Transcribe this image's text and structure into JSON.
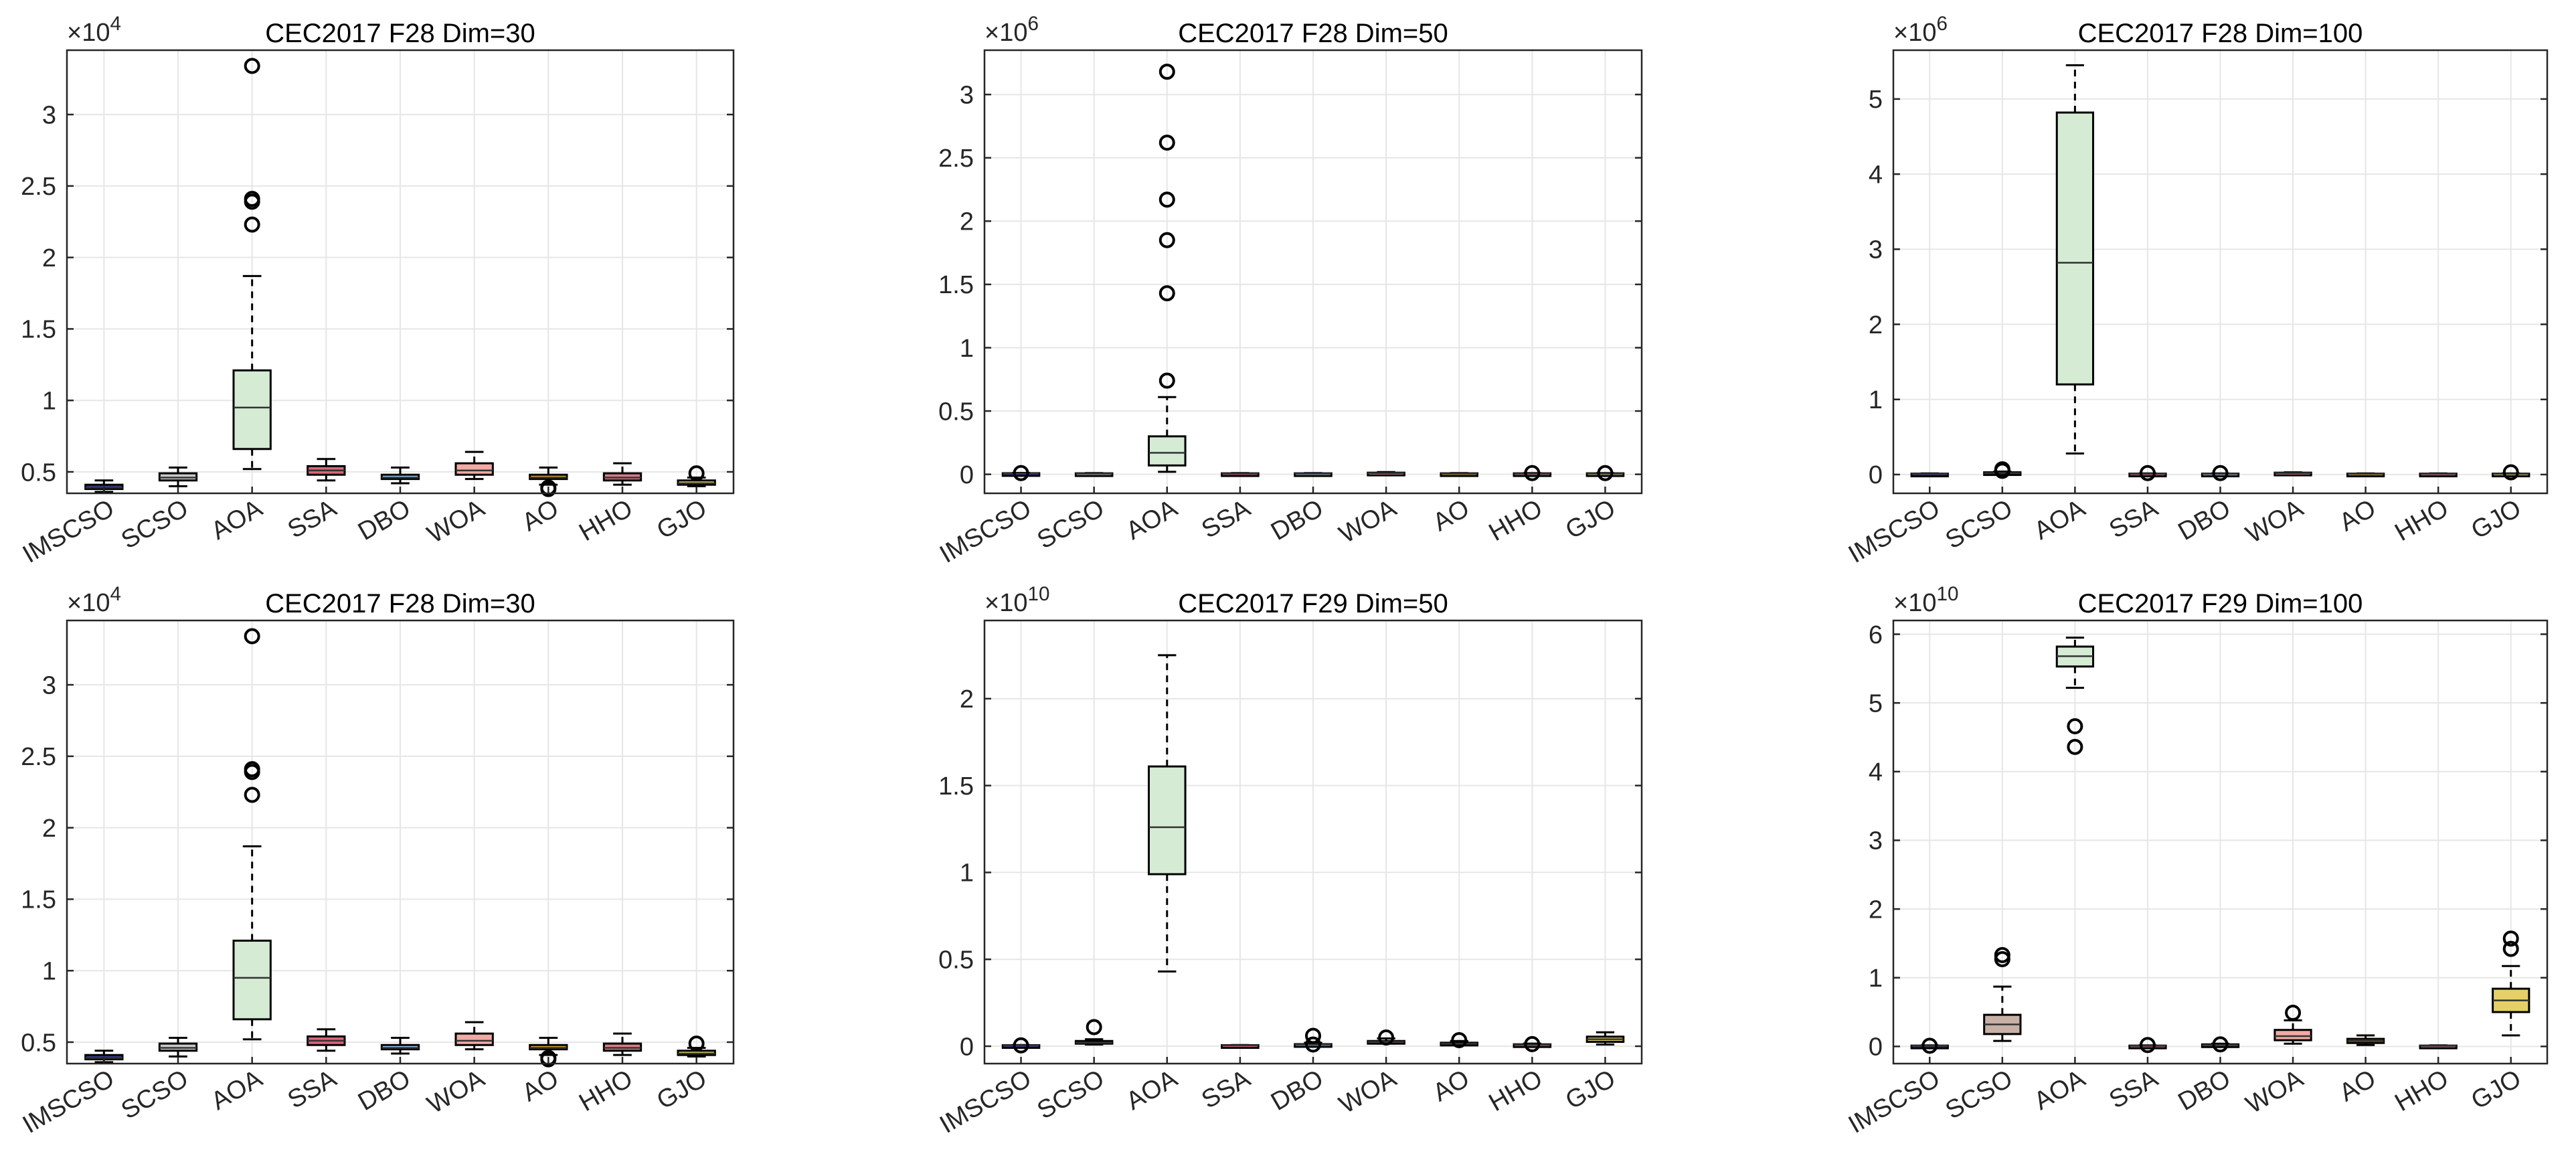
{
  "figure_title": "",
  "colors": {
    "box_fill": [
      "#2f3a8f",
      "#c9c9c9",
      "#d5ebd4",
      "#d9667a",
      "#9cc6ea",
      "#f1aaa4",
      "#d8a22f",
      "#d77c86",
      "#e4d067"
    ],
    "grid": "#e6e6e6",
    "axis": "#262626",
    "text": "#262626"
  },
  "chart_data": [
    {
      "type": "box",
      "title": "CEC2017 F28 Dim=30",
      "exponent": "4",
      "categories": [
        "IMSCSO",
        "SCSO",
        "AOA",
        "SSA",
        "DBO",
        "WOA",
        "AO",
        "HHO",
        "GJO"
      ],
      "ylim": [
        0.35,
        3.45
      ],
      "yticks": [
        0.5,
        1,
        1.5,
        2,
        2.5,
        3
      ],
      "ytick_labels": [
        "0.5",
        "1",
        "1.5",
        "2",
        "2.5",
        "3"
      ],
      "box_fill": [
        "#2f3a8f",
        "#c9c9c9",
        "#d5ebd4",
        "#d9667a",
        "#9cc6ea",
        "#f1aaa4",
        "#d8a22f",
        "#d77c86",
        "#e4d067"
      ],
      "boxes": [
        {
          "min": 0.36,
          "q1": 0.38,
          "median": 0.39,
          "q3": 0.41,
          "max": 0.44,
          "outliers": []
        },
        {
          "min": 0.4,
          "q1": 0.44,
          "median": 0.46,
          "q3": 0.49,
          "max": 0.53,
          "outliers": []
        },
        {
          "min": 0.52,
          "q1": 0.66,
          "median": 0.95,
          "q3": 1.21,
          "max": 1.87,
          "outliers": [
            3.34,
            2.41,
            2.39,
            2.23
          ]
        },
        {
          "min": 0.44,
          "q1": 0.48,
          "median": 0.51,
          "q3": 0.54,
          "max": 0.59,
          "outliers": []
        },
        {
          "min": 0.42,
          "q1": 0.45,
          "median": 0.46,
          "q3": 0.48,
          "max": 0.53,
          "outliers": []
        },
        {
          "min": 0.45,
          "q1": 0.48,
          "median": 0.51,
          "q3": 0.56,
          "max": 0.64,
          "outliers": []
        },
        {
          "min": 0.41,
          "q1": 0.45,
          "median": 0.46,
          "q3": 0.48,
          "max": 0.53,
          "outliers": [
            0.39,
            0.38
          ]
        },
        {
          "min": 0.41,
          "q1": 0.44,
          "median": 0.46,
          "q3": 0.49,
          "max": 0.56,
          "outliers": []
        },
        {
          "min": 0.4,
          "q1": 0.41,
          "median": 0.42,
          "q3": 0.44,
          "max": 0.46,
          "outliers": [
            0.49
          ]
        }
      ]
    },
    {
      "type": "box",
      "title": "CEC2017 F28 Dim=50",
      "exponent": "6",
      "categories": [
        "IMSCSO",
        "SCSO",
        "AOA",
        "SSA",
        "DBO",
        "WOA",
        "AO",
        "HHO",
        "GJO"
      ],
      "ylim": [
        -0.15,
        3.35
      ],
      "yticks": [
        0,
        0.5,
        1,
        1.5,
        2,
        2.5,
        3
      ],
      "ytick_labels": [
        "0",
        "0.5",
        "1",
        "1.5",
        "2",
        "2.5",
        "3"
      ],
      "box_fill": [
        "#2f3a8f",
        "#c9c9c9",
        "#d5ebd4",
        "#d9667a",
        "#9cc6ea",
        "#f1aaa4",
        "#d8a22f",
        "#d77c86",
        "#e4d067"
      ],
      "boxes": [
        {
          "min": 0.003,
          "q1": 0.005,
          "median": 0.007,
          "q3": 0.009,
          "max": 0.011,
          "outliers": [
            0.01
          ]
        },
        {
          "min": 0.003,
          "q1": 0.005,
          "median": 0.006,
          "q3": 0.008,
          "max": 0.01,
          "outliers": []
        },
        {
          "min": 0.02,
          "q1": 0.07,
          "median": 0.17,
          "q3": 0.3,
          "max": 0.61,
          "outliers": [
            3.18,
            2.62,
            2.17,
            1.85,
            1.43,
            0.74
          ]
        },
        {
          "min": 0.002,
          "q1": 0.004,
          "median": 0.006,
          "q3": 0.008,
          "max": 0.01,
          "outliers": []
        },
        {
          "min": 0.003,
          "q1": 0.005,
          "median": 0.006,
          "q3": 0.008,
          "max": 0.01,
          "outliers": []
        },
        {
          "min": 0.004,
          "q1": 0.008,
          "median": 0.01,
          "q3": 0.013,
          "max": 0.018,
          "outliers": []
        },
        {
          "min": 0.003,
          "q1": 0.005,
          "median": 0.006,
          "q3": 0.008,
          "max": 0.01,
          "outliers": []
        },
        {
          "min": 0.003,
          "q1": 0.005,
          "median": 0.006,
          "q3": 0.008,
          "max": 0.01,
          "outliers": [
            0.01
          ]
        },
        {
          "min": 0.003,
          "q1": 0.005,
          "median": 0.006,
          "q3": 0.008,
          "max": 0.01,
          "outliers": [
            0.01
          ]
        }
      ]
    },
    {
      "type": "box",
      "title": "CEC2017 F28 Dim=100",
      "exponent": "6",
      "categories": [
        "IMSCSO",
        "SCSO",
        "AOA",
        "SSA",
        "DBO",
        "WOA",
        "AO",
        "HHO",
        "GJO"
      ],
      "ylim": [
        -0.25,
        5.65
      ],
      "yticks": [
        0,
        1,
        2,
        3,
        4,
        5
      ],
      "ytick_labels": [
        "0",
        "1",
        "2",
        "3",
        "4",
        "5"
      ],
      "box_fill": [
        "#2f3a8f",
        "#c9c9c9",
        "#d5ebd4",
        "#d9667a",
        "#9cc6ea",
        "#f1aaa4",
        "#d8a22f",
        "#d77c86",
        "#e4d067"
      ],
      "boxes": [
        {
          "min": 0.005,
          "q1": 0.008,
          "median": 0.01,
          "q3": 0.012,
          "max": 0.015,
          "outliers": []
        },
        {
          "min": 0.01,
          "q1": 0.015,
          "median": 0.02,
          "q3": 0.03,
          "max": 0.04,
          "outliers": [
            0.07,
            0.05
          ]
        },
        {
          "min": 0.28,
          "q1": 1.2,
          "median": 2.82,
          "q3": 4.82,
          "max": 5.45,
          "outliers": []
        },
        {
          "min": 0.005,
          "q1": 0.008,
          "median": 0.01,
          "q3": 0.012,
          "max": 0.015,
          "outliers": [
            0.02
          ]
        },
        {
          "min": 0.005,
          "q1": 0.008,
          "median": 0.01,
          "q3": 0.012,
          "max": 0.015,
          "outliers": [
            0.02
          ]
        },
        {
          "min": 0.01,
          "q1": 0.015,
          "median": 0.02,
          "q3": 0.025,
          "max": 0.03,
          "outliers": []
        },
        {
          "min": 0.005,
          "q1": 0.008,
          "median": 0.01,
          "q3": 0.012,
          "max": 0.015,
          "outliers": []
        },
        {
          "min": 0.005,
          "q1": 0.008,
          "median": 0.01,
          "q3": 0.012,
          "max": 0.015,
          "outliers": []
        },
        {
          "min": 0.005,
          "q1": 0.008,
          "median": 0.01,
          "q3": 0.012,
          "max": 0.015,
          "outliers": [
            0.03
          ]
        }
      ]
    },
    {
      "type": "box",
      "title": "CEC2017 F28 Dim=30",
      "exponent": "4",
      "categories": [
        "IMSCSO",
        "SCSO",
        "AOA",
        "SSA",
        "DBO",
        "WOA",
        "AO",
        "HHO",
        "GJO"
      ],
      "ylim": [
        0.35,
        3.45
      ],
      "yticks": [
        0.5,
        1,
        1.5,
        2,
        2.5,
        3
      ],
      "ytick_labels": [
        "0.5",
        "1",
        "1.5",
        "2",
        "2.5",
        "3"
      ],
      "box_fill": [
        "#2f3a8f",
        "#c9c9c9",
        "#d5ebd4",
        "#d9667a",
        "#9cc6ea",
        "#f1aaa4",
        "#d8a22f",
        "#d77c86",
        "#e4d067"
      ],
      "boxes": [
        {
          "min": 0.36,
          "q1": 0.38,
          "median": 0.39,
          "q3": 0.41,
          "max": 0.44,
          "outliers": []
        },
        {
          "min": 0.4,
          "q1": 0.44,
          "median": 0.46,
          "q3": 0.49,
          "max": 0.53,
          "outliers": []
        },
        {
          "min": 0.52,
          "q1": 0.66,
          "median": 0.95,
          "q3": 1.21,
          "max": 1.87,
          "outliers": [
            3.34,
            2.41,
            2.39,
            2.23
          ]
        },
        {
          "min": 0.44,
          "q1": 0.48,
          "median": 0.51,
          "q3": 0.54,
          "max": 0.59,
          "outliers": []
        },
        {
          "min": 0.42,
          "q1": 0.45,
          "median": 0.46,
          "q3": 0.48,
          "max": 0.53,
          "outliers": []
        },
        {
          "min": 0.45,
          "q1": 0.48,
          "median": 0.51,
          "q3": 0.56,
          "max": 0.64,
          "outliers": []
        },
        {
          "min": 0.41,
          "q1": 0.45,
          "median": 0.46,
          "q3": 0.48,
          "max": 0.53,
          "outliers": [
            0.39,
            0.38
          ]
        },
        {
          "min": 0.41,
          "q1": 0.44,
          "median": 0.46,
          "q3": 0.49,
          "max": 0.56,
          "outliers": []
        },
        {
          "min": 0.4,
          "q1": 0.41,
          "median": 0.42,
          "q3": 0.44,
          "max": 0.46,
          "outliers": [
            0.49
          ]
        }
      ]
    },
    {
      "type": "box",
      "title": "CEC2017 F29 Dim=50",
      "exponent": "10",
      "categories": [
        "IMSCSO",
        "SCSO",
        "AOA",
        "SSA",
        "DBO",
        "WOA",
        "AO",
        "HHO",
        "GJO"
      ],
      "ylim": [
        -0.1,
        2.45
      ],
      "yticks": [
        0,
        0.5,
        1,
        1.5,
        2
      ],
      "ytick_labels": [
        "0",
        "0.5",
        "1",
        "1.5",
        "2"
      ],
      "box_fill": [
        "#2f3a8f",
        "#c9c9c9",
        "#d5ebd4",
        "#d9667a",
        "#9cc6ea",
        "#f1aaa4",
        "#d8a22f",
        "#d77c86",
        "#e4d067"
      ],
      "boxes": [
        {
          "min": 0.003,
          "q1": 0.004,
          "median": 0.005,
          "q3": 0.006,
          "max": 0.007,
          "outliers": [
            0.005
          ]
        },
        {
          "min": 0.01,
          "q1": 0.015,
          "median": 0.02,
          "q3": 0.03,
          "max": 0.04,
          "outliers": [
            0.11
          ]
        },
        {
          "min": 0.43,
          "q1": 0.99,
          "median": 1.26,
          "q3": 1.61,
          "max": 2.25,
          "outliers": []
        },
        {
          "min": 0.003,
          "q1": 0.004,
          "median": 0.005,
          "q3": 0.006,
          "max": 0.007,
          "outliers": []
        },
        {
          "min": 0.005,
          "q1": 0.008,
          "median": 0.01,
          "q3": 0.012,
          "max": 0.02,
          "outliers": [
            0.06,
            0.01
          ]
        },
        {
          "min": 0.015,
          "q1": 0.02,
          "median": 0.025,
          "q3": 0.03,
          "max": 0.045,
          "outliers": [
            0.05
          ]
        },
        {
          "min": 0.008,
          "q1": 0.012,
          "median": 0.015,
          "q3": 0.02,
          "max": 0.03,
          "outliers": [
            0.035
          ]
        },
        {
          "min": 0.005,
          "q1": 0.007,
          "median": 0.009,
          "q3": 0.011,
          "max": 0.015,
          "outliers": [
            0.012
          ]
        },
        {
          "min": 0.01,
          "q1": 0.025,
          "median": 0.04,
          "q3": 0.055,
          "max": 0.08,
          "outliers": []
        }
      ]
    },
    {
      "type": "box",
      "title": "CEC2017 F29 Dim=100",
      "exponent": "10",
      "categories": [
        "IMSCSO",
        "SCSO",
        "AOA",
        "SSA",
        "DBO",
        "WOA",
        "AO",
        "HHO",
        "GJO"
      ],
      "ylim": [
        -0.25,
        6.2
      ],
      "yticks": [
        0,
        1,
        2,
        3,
        4,
        5,
        6
      ],
      "ytick_labels": [
        "0",
        "1",
        "2",
        "3",
        "4",
        "5",
        "6"
      ],
      "box_fill": [
        "#2f3a8f",
        "#c8b0a6",
        "#d5ebd4",
        "#d9667a",
        "#9cc6ea",
        "#f1aaa4",
        "#d8a22f",
        "#d77c86",
        "#e4d067"
      ],
      "boxes": [
        {
          "min": 0.005,
          "q1": 0.008,
          "median": 0.01,
          "q3": 0.012,
          "max": 0.015,
          "outliers": [
            0.01
          ]
        },
        {
          "min": 0.08,
          "q1": 0.18,
          "median": 0.32,
          "q3": 0.46,
          "max": 0.87,
          "outliers": [
            1.33,
            1.27
          ]
        },
        {
          "min": 5.22,
          "q1": 5.53,
          "median": 5.68,
          "q3": 5.82,
          "max": 5.95,
          "outliers": [
            4.66,
            4.36
          ]
        },
        {
          "min": 0.005,
          "q1": 0.008,
          "median": 0.01,
          "q3": 0.012,
          "max": 0.015,
          "outliers": [
            0.02
          ]
        },
        {
          "min": 0.01,
          "q1": 0.015,
          "median": 0.02,
          "q3": 0.03,
          "max": 0.04,
          "outliers": [
            0.03
          ]
        },
        {
          "min": 0.04,
          "q1": 0.09,
          "median": 0.15,
          "q3": 0.24,
          "max": 0.38,
          "outliers": [
            0.49
          ]
        },
        {
          "min": 0.02,
          "q1": 0.05,
          "median": 0.08,
          "q3": 0.11,
          "max": 0.16,
          "outliers": []
        },
        {
          "min": 0.005,
          "q1": 0.008,
          "median": 0.01,
          "q3": 0.012,
          "max": 0.015,
          "outliers": []
        },
        {
          "min": 0.16,
          "q1": 0.5,
          "median": 0.67,
          "q3": 0.84,
          "max": 1.17,
          "outliers": [
            1.57,
            1.42
          ]
        }
      ]
    }
  ]
}
